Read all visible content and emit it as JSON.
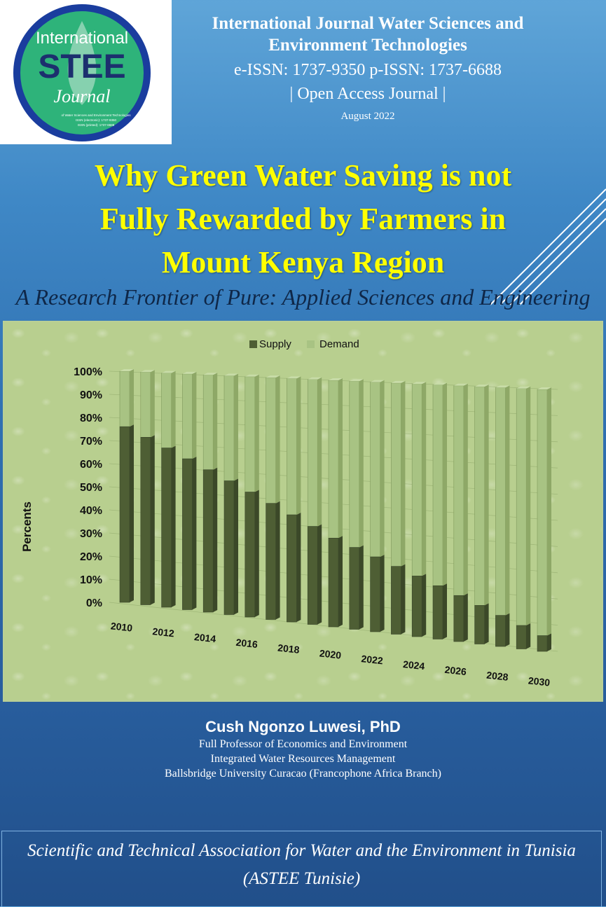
{
  "logo": {
    "line1": "International",
    "line2": "STEE",
    "line3": "Journal",
    "small_lines": [
      "of Water Sciences and Environment Technologies",
      "ISSN (electronic): 1737-9350",
      "ISSN (printed): 1737-6688"
    ],
    "colors": {
      "ring": "#1a3d9e",
      "disc": "#2eb37a",
      "stee": "#1c2f6e"
    }
  },
  "header": {
    "journal_line1": "International Journal Water Sciences and",
    "journal_line2": "Environment Technologies",
    "issn": "e-ISSN: 1737-9350 p-ISSN: 1737-6688",
    "open_access": "| Open Access Journal |",
    "date": "August 2022"
  },
  "title": {
    "line1": "Why Green Water Saving is not",
    "line2": "Fully Rewarded by Farmers in",
    "line3": "Mount Kenya Region",
    "color": "#ffff00"
  },
  "subtitle": "A Research Frontier of Pure: Applied Sciences and Engineering",
  "chart_data": {
    "type": "bar",
    "stacked": true,
    "percent": true,
    "categories": [
      2010,
      2011,
      2012,
      2013,
      2014,
      2015,
      2016,
      2017,
      2018,
      2019,
      2020,
      2021,
      2022,
      2023,
      2024,
      2025,
      2026,
      2027,
      2028,
      2029,
      2030
    ],
    "x_tick_labels": [
      "2010",
      "2012",
      "2014",
      "2016",
      "2018",
      "2020",
      "2022",
      "2024",
      "2026",
      "2028",
      "2030"
    ],
    "series": [
      {
        "name": "Supply",
        "color": "#4e5e34",
        "values": [
          76,
          72,
          68,
          64,
          60,
          56,
          52,
          48,
          44,
          40,
          36,
          33,
          30,
          27,
          24,
          21,
          18,
          15,
          12,
          9,
          6
        ]
      },
      {
        "name": "Demand",
        "color": "#a8c383",
        "values": [
          24,
          28,
          32,
          36,
          40,
          44,
          48,
          52,
          56,
          60,
          64,
          67,
          70,
          73,
          76,
          79,
          82,
          85,
          88,
          91,
          94
        ]
      }
    ],
    "ylabel": "Percents",
    "y_tick_labels": [
      "0%",
      "10%",
      "20%",
      "30%",
      "40%",
      "50%",
      "60%",
      "70%",
      "80%",
      "90%",
      "100%"
    ],
    "ylim": [
      0,
      100
    ],
    "legend": "top-center",
    "grid": true
  },
  "author": {
    "name": "Cush Ngonzo Luwesi, PhD",
    "line1": "Full Professor of Economics and Environment",
    "line2": "Integrated Water Resources Management",
    "line3": "Ballsbridge University Curacao (Francophone Africa Branch)"
  },
  "footer": {
    "line1": "Scientific and Technical Association for Water and the Environment in Tunisia",
    "line2": "(ASTEE Tunisie)"
  }
}
